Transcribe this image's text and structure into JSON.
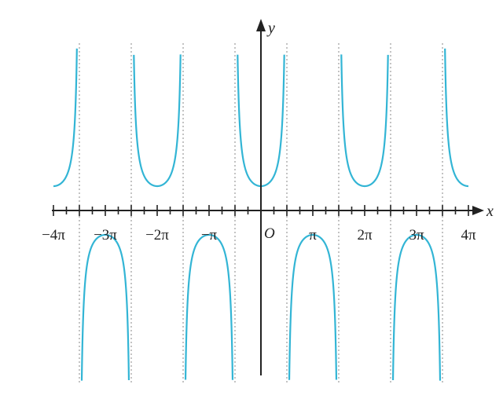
{
  "chart_data": {
    "type": "line",
    "function": "sec(x)",
    "series": [
      {
        "values": "y = sec x"
      }
    ],
    "xlim": [
      -12.566,
      12.566
    ],
    "ylim": [
      -4.0,
      4.0
    ],
    "x_tick_labels": [
      "−4π",
      "−3π",
      "−2π",
      "−π",
      "π",
      "2π",
      "3π",
      "4π"
    ],
    "x_tick_values": [
      -12.566,
      -9.425,
      -6.283,
      -3.142,
      3.142,
      6.283,
      9.425,
      12.566
    ],
    "minor_tick_step": "π/4",
    "asymptotes": [
      -10.996,
      -7.854,
      -4.712,
      -1.571,
      1.571,
      4.712,
      7.854,
      10.996
    ],
    "xlabel": "x",
    "ylabel": "y",
    "origin_label": "O",
    "grid": false,
    "colors": {
      "curve": "#33b5d5",
      "axis": "#222222",
      "asymptote": "#888888"
    }
  }
}
